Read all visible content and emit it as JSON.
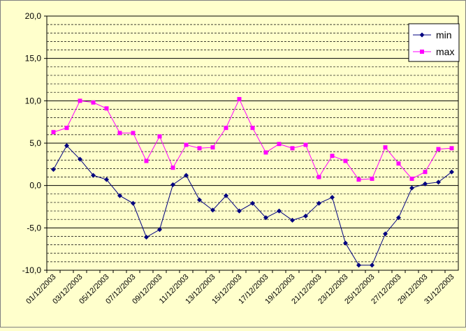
{
  "chart_data": {
    "type": "line",
    "categories": [
      "01/12/2003",
      null,
      "03/12/2003",
      null,
      "05/12/2003",
      null,
      "07/12/2003",
      null,
      "09/12/2003",
      null,
      "11/12/2003",
      null,
      "13/12/2003",
      null,
      "15/12/2003",
      null,
      "17/12/2003",
      null,
      "19/12/2003",
      null,
      "21/12/2003",
      null,
      "23/12/2003",
      null,
      "25/12/2003",
      null,
      "27/12/2003",
      null,
      "29/12/2003",
      null,
      "31/12/2003"
    ],
    "series": [
      {
        "name": "min",
        "color": "#000080",
        "marker": "diamond",
        "values": [
          1.9,
          4.7,
          3.1,
          1.2,
          0.7,
          -1.2,
          -2.1,
          -6.1,
          -5.2,
          0.1,
          1.2,
          -1.7,
          -2.9,
          -1.2,
          -3.0,
          -2.1,
          -3.8,
          -3.0,
          -4.1,
          -3.6,
          -2.1,
          -1.4,
          -6.8,
          -9.4,
          -9.4,
          -5.7,
          -3.8,
          -0.3,
          0.2,
          0.4,
          1.6
        ]
      },
      {
        "name": "max",
        "color": "#ff00ff",
        "marker": "square",
        "values": [
          6.3,
          6.8,
          10.0,
          9.8,
          9.1,
          6.2,
          6.2,
          2.9,
          5.8,
          2.1,
          4.8,
          4.4,
          4.5,
          6.8,
          10.2,
          6.8,
          3.9,
          4.9,
          4.4,
          4.8,
          1.0,
          3.5,
          2.9,
          0.7,
          0.8,
          4.5,
          2.6,
          0.8,
          1.6,
          4.3,
          4.4
        ]
      }
    ],
    "ylim": [
      -10,
      20
    ],
    "yticks": [
      {
        "value": -10,
        "label": "-10,0"
      },
      {
        "value": -5,
        "label": "-5,0"
      },
      {
        "value": 0,
        "label": "0,0"
      },
      {
        "value": 5,
        "label": "5,0"
      },
      {
        "value": 10,
        "label": "10,0"
      },
      {
        "value": 15,
        "label": "15,0"
      },
      {
        "value": 20,
        "label": "20,0"
      }
    ],
    "minor_yticks": [
      -9,
      -8,
      -7,
      -6,
      -4,
      -3,
      -2,
      -1,
      1,
      2,
      3,
      4,
      6,
      7,
      8,
      9,
      11,
      12,
      13,
      14,
      16,
      17,
      18,
      19
    ],
    "grid": true,
    "legend": "top-right"
  }
}
